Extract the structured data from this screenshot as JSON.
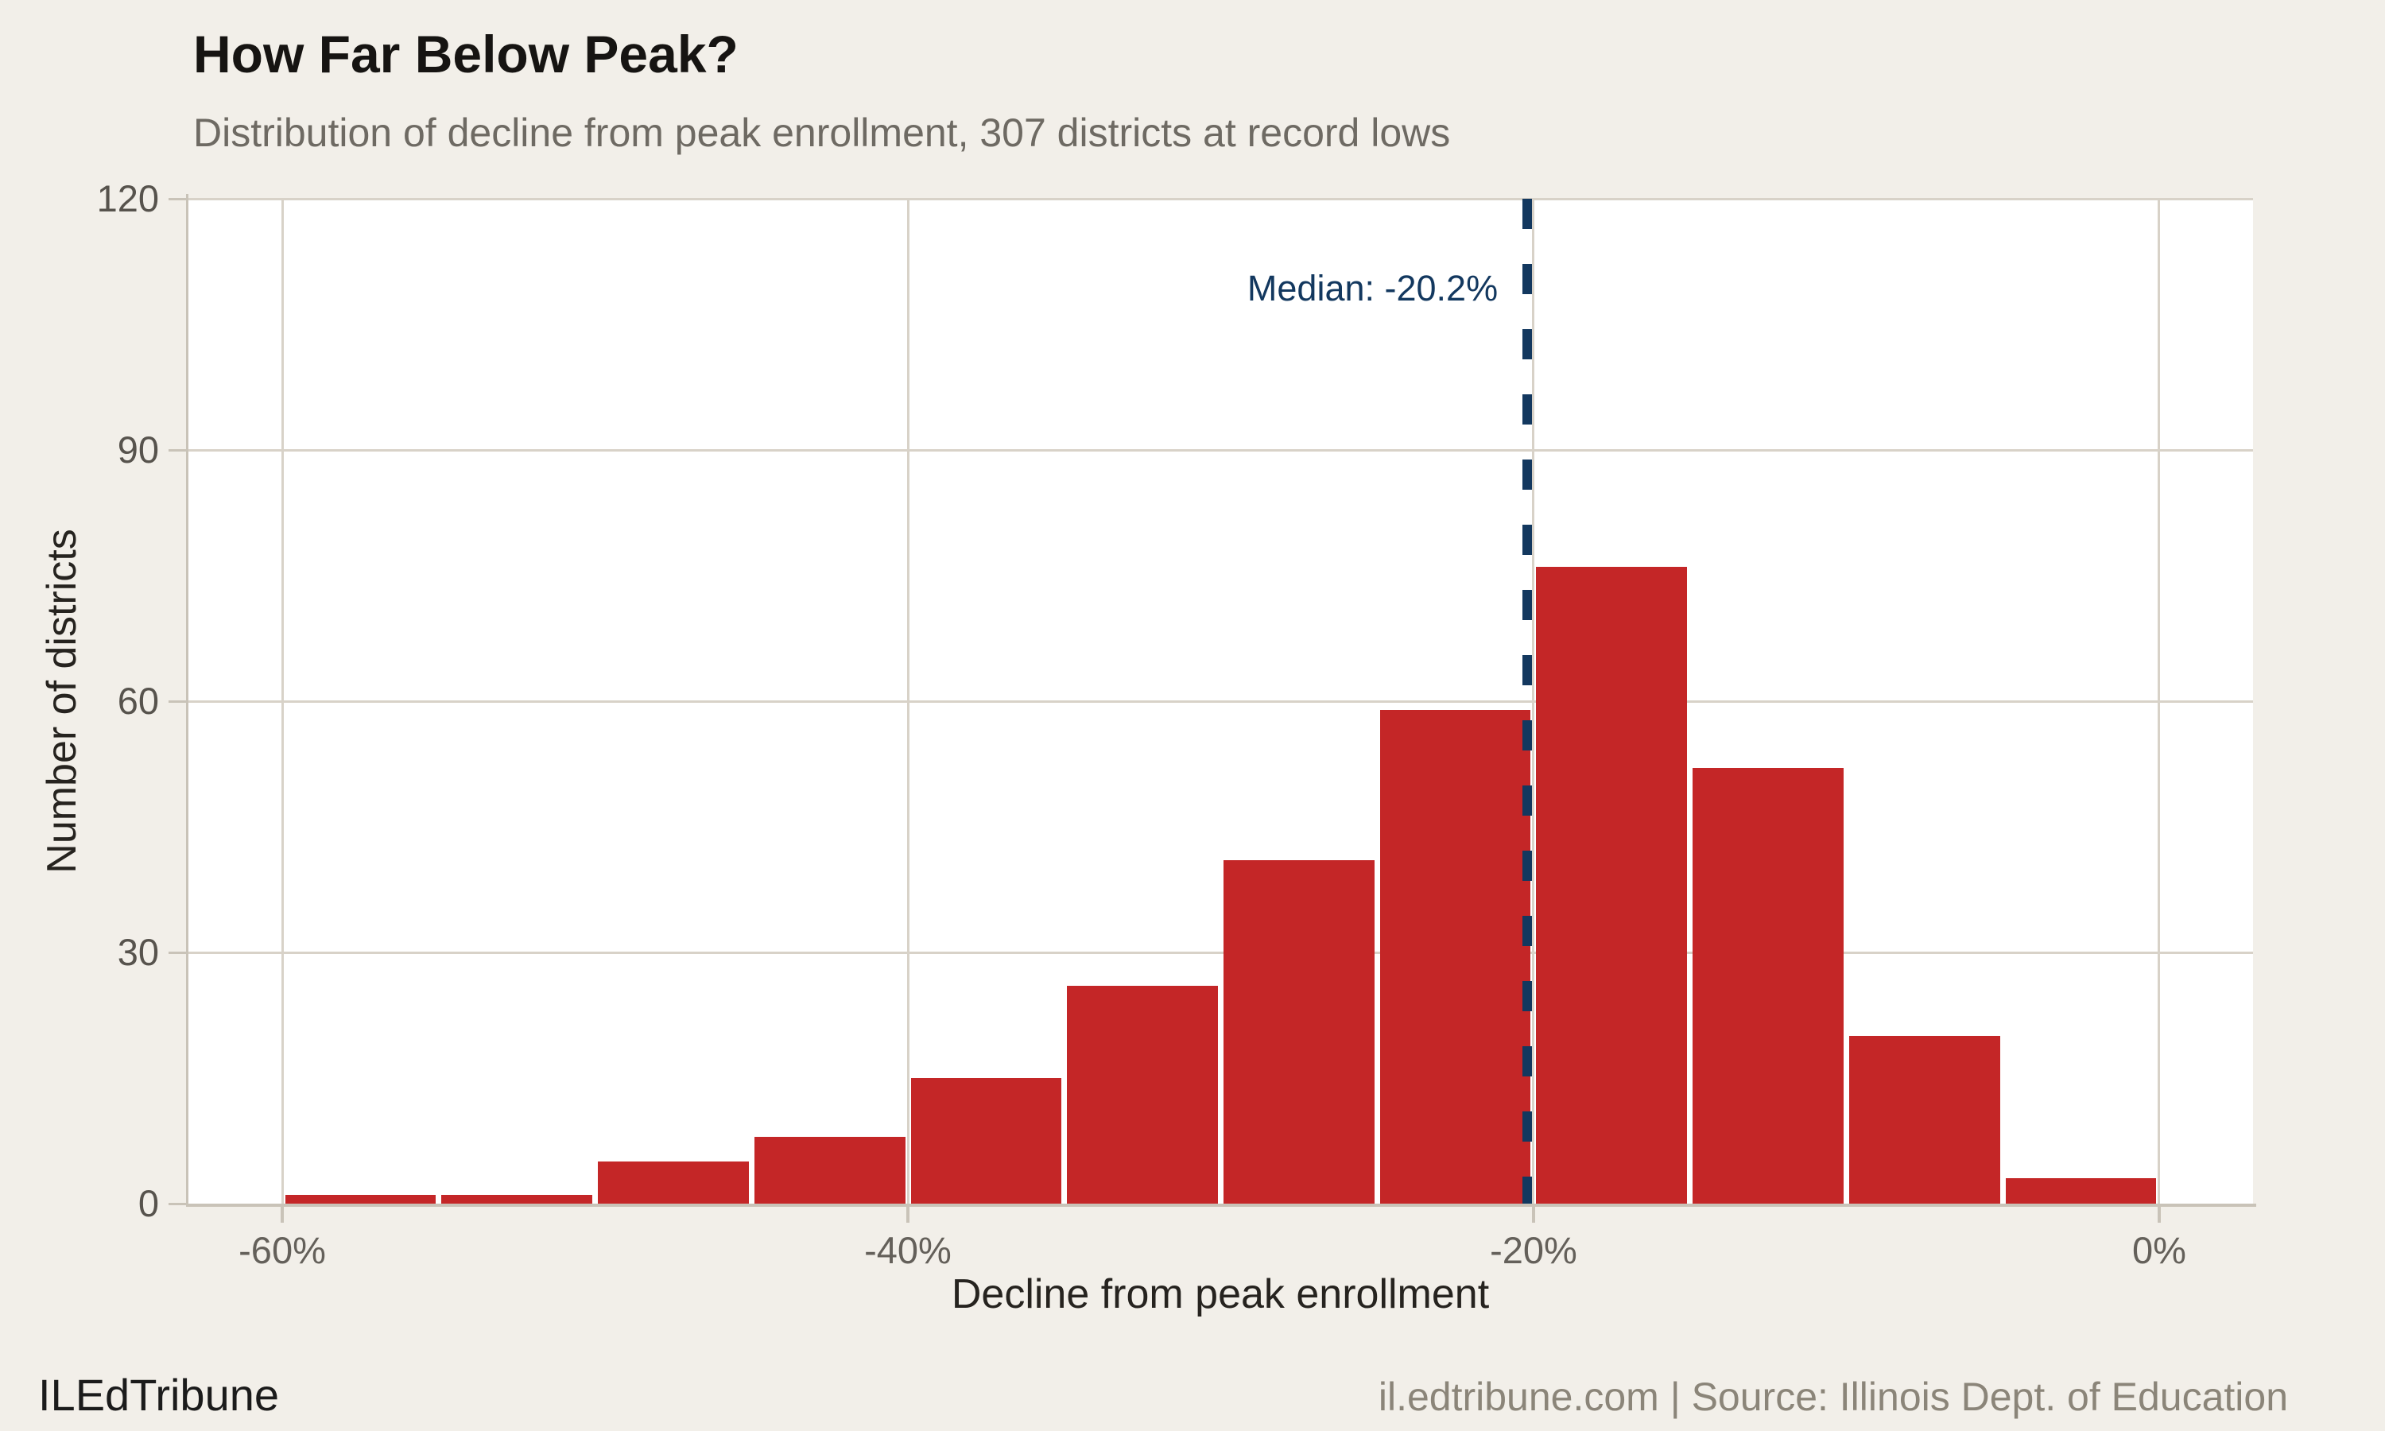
{
  "title": "How Far Below Peak?",
  "subtitle": "Distribution of decline from peak enrollment, 307 districts at record lows",
  "footer": {
    "brand": "ILEdTribune",
    "source": "il.edtribune.com | Source: Illinois Dept. of Education"
  },
  "colors": {
    "background": "#f2efe9",
    "panel": "#ffffff",
    "bar": "#c42627",
    "gridline": "#d8d2c8",
    "axis": "#c9c3b8",
    "median": "#13385f"
  },
  "chart_data": {
    "type": "bar",
    "title": "How Far Below Peak?",
    "subtitle": "Distribution of decline from peak enrollment, 307 districts at record lows",
    "xlabel": "Decline from peak enrollment",
    "ylabel": "Number of districts",
    "xlim": [
      -63,
      3
    ],
    "ylim": [
      0,
      120
    ],
    "grid": true,
    "bin_width_pct": 5,
    "bin_edges": [
      -60,
      -55,
      -50,
      -45,
      -40,
      -35,
      -30,
      -25,
      -20,
      -15,
      -10,
      -5,
      0
    ],
    "counts": [
      1,
      1,
      5,
      8,
      15,
      26,
      41,
      59,
      76,
      52,
      20,
      3
    ],
    "total_districts": 307,
    "x_tick_values": [
      -60,
      -40,
      -20,
      0
    ],
    "x_tick_labels": [
      "-60%",
      "-40%",
      "-20%",
      "0%"
    ],
    "y_tick_values": [
      0,
      30,
      60,
      90,
      120
    ],
    "y_tick_labels": [
      "0",
      "30",
      "60",
      "90",
      "120"
    ],
    "median": {
      "value": -20.2,
      "label": "Median: -20.2%"
    }
  }
}
